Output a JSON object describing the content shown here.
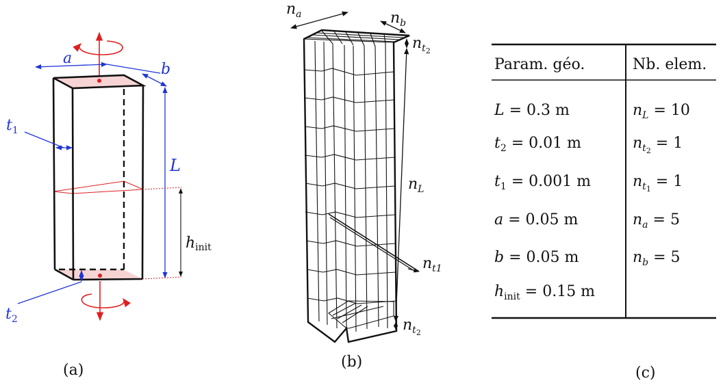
{
  "panel_a": {
    "caption": "(a)",
    "labels": {
      "a": "a",
      "b": "b",
      "L": "L",
      "t1": "t",
      "t1_sub": "1",
      "t2": "t",
      "t2_sub": "2",
      "h": "h",
      "h_sub": "init"
    },
    "colors": {
      "dimension": "#1f35d6",
      "rotation": "#e01e1e",
      "face": "#f4c6c6",
      "edge": "#111111"
    }
  },
  "panel_b": {
    "caption": "(b)",
    "labels": {
      "na": "n",
      "na_sub": "a",
      "nb": "n",
      "nb_sub": "b",
      "nt2_top": "n",
      "nt2_top_sub": "t",
      "nt2_top_subsub": "2",
      "nL": "n",
      "nL_sub": "L",
      "nt1": "n",
      "nt1_sub": "t1",
      "nt2_bot": "n",
      "nt2_bot_sub": "t",
      "nt2_bot_subsub": "2"
    }
  },
  "panel_c": {
    "caption": "(c)",
    "headers": [
      "Param. géo.",
      "Nb. elem."
    ],
    "rows": [
      {
        "param": "L = 0.3 m",
        "elem": "n_L = 10"
      },
      {
        "param": "t_2 = 0.01 m",
        "elem": "n_t2 = 1"
      },
      {
        "param": "t_1 = 0.001 m",
        "elem": "n_t1 = 1"
      },
      {
        "param": "a = 0.05 m",
        "elem": "n_a = 5"
      },
      {
        "param": "b = 0.05 m",
        "elem": "n_b = 5"
      },
      {
        "param": "h_init = 0.15 m",
        "elem": ""
      }
    ],
    "display": {
      "r0": {
        "p_var": "L",
        "p_val": " = 0.3 m",
        "e_var": "n",
        "e_sub": "L",
        "e_val": " = 10"
      },
      "r1": {
        "p_var": "t",
        "p_sub": "2",
        "p_val": " = 0.01 m",
        "e_var": "n",
        "e_sub": "t",
        "e_subsub": "2",
        "e_val": " = 1"
      },
      "r2": {
        "p_var": "t",
        "p_sub": "1",
        "p_val": " = 0.001 m",
        "e_var": "n",
        "e_sub": "t",
        "e_subsub": "1",
        "e_val": " = 1"
      },
      "r3": {
        "p_var": "a",
        "p_val": " = 0.05 m",
        "e_var": "n",
        "e_sub": "a",
        "e_val": " = 5"
      },
      "r4": {
        "p_var": "b",
        "p_val": " = 0.05 m",
        "e_var": "n",
        "e_sub": "b",
        "e_val": " = 5"
      },
      "r5": {
        "p_var": "h",
        "p_sub": "init",
        "p_val": " = 0.15 m"
      }
    }
  }
}
